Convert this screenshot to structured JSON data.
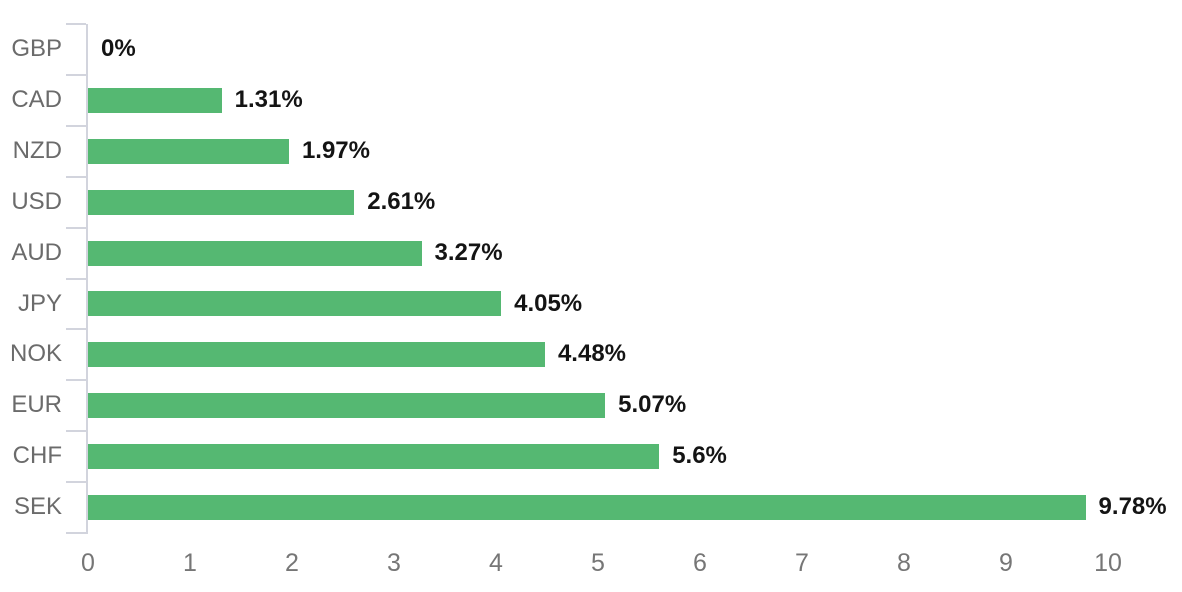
{
  "chart_data": {
    "type": "bar",
    "orientation": "horizontal",
    "title": "",
    "xlabel": "",
    "ylabel": "",
    "categories": [
      "GBP",
      "CAD",
      "NZD",
      "USD",
      "AUD",
      "JPY",
      "NOK",
      "EUR",
      "CHF",
      "SEK"
    ],
    "values": [
      0,
      1.31,
      1.97,
      2.61,
      3.27,
      4.05,
      4.48,
      5.07,
      5.6,
      9.78
    ],
    "value_labels": [
      "0%",
      "1.31%",
      "1.97%",
      "2.61%",
      "3.27%",
      "4.05%",
      "4.48%",
      "5.07%",
      "5.6%",
      "9.78%"
    ],
    "x_tick_labels": [
      "0",
      "1",
      "2",
      "3",
      "4",
      "5",
      "6",
      "7",
      "8",
      "9",
      "10"
    ],
    "xlim": [
      0,
      10
    ],
    "grid": "off",
    "legend": "none",
    "colors": {
      "bar": "#55b872",
      "axis": "#d2d4dd",
      "category_label": "#6b6b6b",
      "x_tick_label": "#767676",
      "value_label": "#141414"
    }
  }
}
